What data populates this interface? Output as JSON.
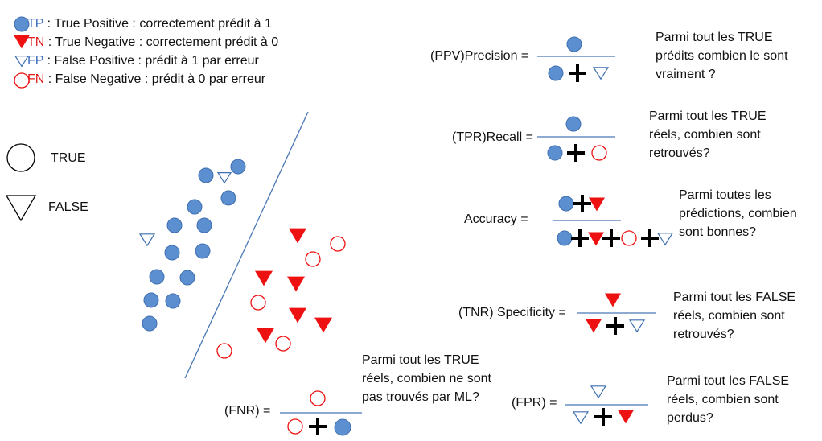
{
  "legend": [
    {
      "abbr": "TP",
      "text": " : True Positive : correctement prédit à 1",
      "color": "#3f6fbf"
    },
    {
      "abbr": "TN",
      "text": " : True Negative : correctement prédit à 0",
      "color": "#e21a1a"
    },
    {
      "abbr": "FP",
      "text": " : False Positive : prédit à 1 par erreur",
      "color": "#3f6fbf"
    },
    {
      "abbr": "FN",
      "text": " : False Negative : prédit à 0 par erreur",
      "color": "#e21a1a"
    }
  ],
  "shape_key": {
    "true_label": "TRUE",
    "false_label": "FALSE"
  },
  "formulas": {
    "precision": {
      "label": "(PPV)Precision  =",
      "note": [
        "Parmi tout les TRUE",
        "prédits combien le sont",
        "vraiment ?"
      ]
    },
    "recall": {
      "label": "(TPR)Recall =",
      "note": [
        "Parmi tout les TRUE",
        "réels, combien sont",
        "retrouvés?"
      ]
    },
    "accuracy": {
      "label": "Accuracy =",
      "note": [
        "Parmi toutes les",
        "prédictions, combien",
        "sont bonnes?"
      ]
    },
    "specificity": {
      "label": "(TNR) Specificity =",
      "note": [
        "Parmi tout les FALSE",
        "réels, combien sont",
        "retrouvés?"
      ]
    },
    "fnr": {
      "label": "(FNR) =",
      "note": [
        "Parmi tout les TRUE",
        "réels, combien ne sont",
        "pas trouvés par ML?"
      ]
    },
    "fpr": {
      "label": "(FPR) =",
      "note": [
        "Parmi tout les FALSE",
        "réels, combien sont",
        "perdus?"
      ]
    }
  },
  "colors": {
    "blue_fill": "#5b8fd0",
    "blue_stroke": "#3f6fb0",
    "red": "#ee1111"
  }
}
